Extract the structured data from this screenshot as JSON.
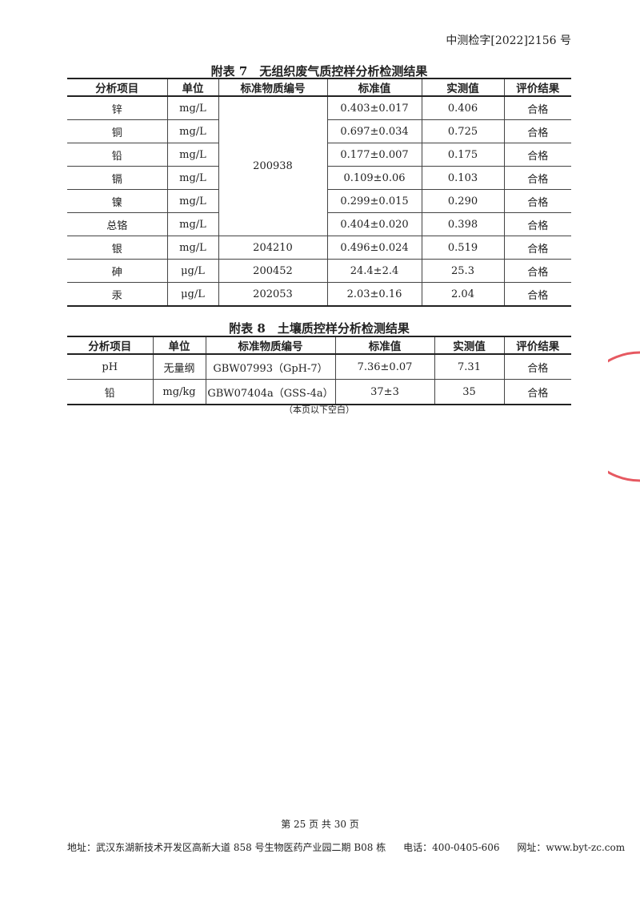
{
  "header": {
    "doc_number": "中测检字[2022]2156 号"
  },
  "table7": {
    "title": "附表 7　无组织废气质控样分析检测结果",
    "columns": [
      "分析项目",
      "单位",
      "标准物质编号",
      "标准值",
      "实测值",
      "评价结果"
    ],
    "rows": [
      {
        "item": "锌",
        "unit": "mg/L",
        "std_value": "0.403±0.017",
        "measured": "0.406",
        "result": "合格"
      },
      {
        "item": "铜",
        "unit": "mg/L",
        "std_value": "0.697±0.034",
        "measured": "0.725",
        "result": "合格"
      },
      {
        "item": "铅",
        "unit": "mg/L",
        "std_value": "0.177±0.007",
        "measured": "0.175",
        "result": "合格"
      },
      {
        "item": "镉",
        "unit": "mg/L",
        "std_value": "0.109±0.06",
        "measured": "0.103",
        "result": "合格"
      },
      {
        "item": "镍",
        "unit": "mg/L",
        "std_value": "0.299±0.015",
        "measured": "0.290",
        "result": "合格"
      },
      {
        "item": "总铬",
        "unit": "mg/L",
        "std_value": "0.404±0.020",
        "measured": "0.398",
        "result": "合格"
      },
      {
        "item": "银",
        "unit": "mg/L",
        "ref": "204210",
        "std_value": "0.496±0.024",
        "measured": "0.519",
        "result": "合格"
      },
      {
        "item": "砷",
        "unit": "μg/L",
        "ref": "200452",
        "std_value": "24.4±2.4",
        "measured": "25.3",
        "result": "合格"
      },
      {
        "item": "汞",
        "unit": "μg/L",
        "ref": "202053",
        "std_value": "2.03±0.16",
        "measured": "2.04",
        "result": "合格"
      }
    ],
    "merged_ref": "200938"
  },
  "table8": {
    "title": "附表 8　土壤质控样分析检测结果",
    "columns": [
      "分析项目",
      "单位",
      "标准物质编号",
      "标准值",
      "实测值",
      "评价结果"
    ],
    "rows": [
      {
        "item": "pH",
        "unit": "无量纲",
        "ref": "GBW07993（GpH-7）",
        "std_value": "7.36±0.07",
        "measured": "7.31",
        "result": "合格"
      },
      {
        "item": "铅",
        "unit": "mg/kg",
        "ref": "GBW07404a（GSS-4a）",
        "std_value": "37±3",
        "measured": "35",
        "result": "合格"
      }
    ],
    "note": "（本页以下空白）"
  },
  "footer": {
    "page": "第 25 页 共 30 页",
    "address": "地址：武汉东湖新技术开发区高新大道 858 号生物医药产业园二期 B08 栋",
    "phone": "电话：400-0405-606",
    "website": "网址：www.byt-zc.com"
  },
  "seal_color": "#e0303a"
}
